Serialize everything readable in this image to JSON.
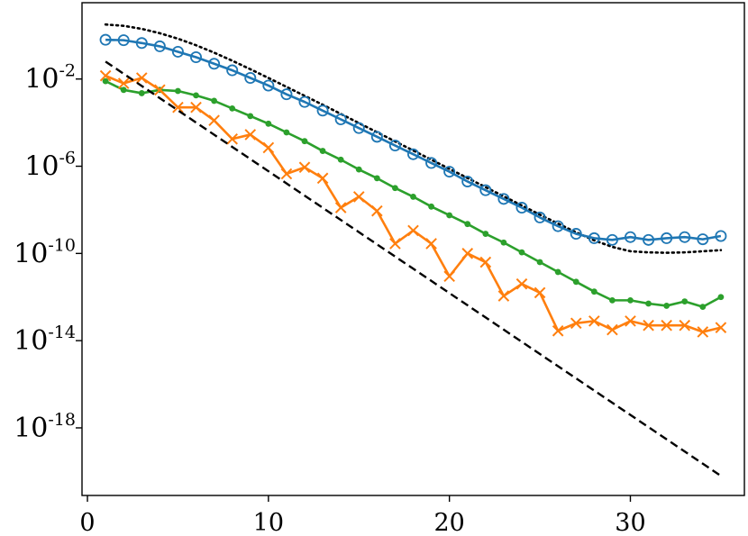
{
  "chart_data": {
    "type": "line",
    "title": "",
    "xlabel": "",
    "ylabel": "",
    "xlim": [
      -0.3,
      36.3
    ],
    "ylim_log10": [
      -21.1,
      1.5
    ],
    "yscale": "log",
    "grid": false,
    "legend": "none",
    "xticks": [
      0,
      10,
      20,
      30
    ],
    "xtick_labels": [
      "0",
      "10",
      "20",
      "30"
    ],
    "yticks_log10": [
      -2,
      -6,
      -10,
      -14,
      -18
    ],
    "ytick_base": "10",
    "ytick_exponents": [
      "-2",
      "-6",
      "-10",
      "-14",
      "-18"
    ],
    "series": [
      {
        "color": "#000000",
        "style": "dotted",
        "marker": "none",
        "x": [
          1,
          2,
          3,
          4,
          5,
          6,
          7,
          8,
          9,
          10,
          11,
          12,
          13,
          14,
          15,
          16,
          17,
          18,
          19,
          20,
          21,
          22,
          23,
          24,
          25,
          26,
          27,
          28,
          29,
          30,
          31,
          32,
          33,
          34,
          35
        ],
        "log10_y": [
          0.5,
          0.44,
          0.3,
          0.1,
          -0.15,
          -0.45,
          -0.79,
          -1.16,
          -1.55,
          -1.95,
          -2.36,
          -2.77,
          -3.18,
          -3.6,
          -4.02,
          -4.44,
          -4.86,
          -5.28,
          -5.7,
          -6.12,
          -6.54,
          -6.96,
          -7.38,
          -7.8,
          -8.22,
          -8.63,
          -9.03,
          -9.4,
          -9.7,
          -9.9,
          -9.95,
          -9.97,
          -9.95,
          -9.9,
          -9.85
        ]
      },
      {
        "color": "#1f77b4",
        "style": "solid",
        "marker": "open-circle",
        "x": [
          1,
          2,
          3,
          4,
          5,
          6,
          7,
          8,
          9,
          10,
          11,
          12,
          13,
          14,
          15,
          16,
          17,
          18,
          19,
          20,
          21,
          22,
          23,
          24,
          25,
          26,
          27,
          28,
          29,
          30,
          31,
          32,
          33,
          34,
          35
        ],
        "log10_y": [
          -0.2,
          -0.22,
          -0.35,
          -0.5,
          -0.75,
          -1.0,
          -1.3,
          -1.6,
          -1.95,
          -2.3,
          -2.7,
          -3.05,
          -3.45,
          -3.85,
          -4.25,
          -4.65,
          -5.05,
          -5.45,
          -5.85,
          -6.25,
          -6.7,
          -7.1,
          -7.5,
          -7.9,
          -8.35,
          -8.75,
          -9.1,
          -9.3,
          -9.38,
          -9.25,
          -9.38,
          -9.3,
          -9.25,
          -9.35,
          -9.2
        ]
      },
      {
        "color": "#2ca02c",
        "style": "solid",
        "marker": "dot",
        "x": [
          1,
          2,
          3,
          4,
          5,
          6,
          7,
          8,
          9,
          10,
          11,
          12,
          13,
          14,
          15,
          16,
          17,
          18,
          19,
          20,
          21,
          22,
          23,
          24,
          25,
          26,
          27,
          28,
          29,
          30,
          31,
          32,
          33,
          34,
          35
        ],
        "log10_y": [
          -2.1,
          -2.5,
          -2.65,
          -2.5,
          -2.55,
          -2.75,
          -3.0,
          -3.35,
          -3.7,
          -4.05,
          -4.45,
          -4.85,
          -5.3,
          -5.7,
          -6.15,
          -6.55,
          -7.0,
          -7.4,
          -7.85,
          -8.25,
          -8.65,
          -9.1,
          -9.5,
          -9.95,
          -10.4,
          -10.85,
          -11.3,
          -11.75,
          -12.15,
          -12.15,
          -12.3,
          -12.4,
          -12.2,
          -12.45,
          -12.0
        ]
      },
      {
        "color": "#ff7f0e",
        "style": "solid",
        "marker": "x",
        "x": [
          1,
          2,
          3,
          4,
          5,
          6,
          7,
          8,
          9,
          10,
          11,
          12,
          13,
          14,
          15,
          16,
          17,
          18,
          19,
          20,
          21,
          22,
          23,
          24,
          25,
          26,
          27,
          28,
          29,
          30,
          31,
          32,
          33,
          34,
          35
        ],
        "log10_y": [
          -1.85,
          -2.2,
          -1.95,
          -2.5,
          -3.3,
          -3.3,
          -3.9,
          -4.75,
          -4.55,
          -5.15,
          -6.35,
          -6.05,
          -6.55,
          -7.9,
          -7.4,
          -8.05,
          -9.55,
          -8.95,
          -9.55,
          -11.05,
          -10.0,
          -10.4,
          -11.95,
          -11.4,
          -11.8,
          -13.55,
          -13.2,
          -13.1,
          -13.5,
          -13.1,
          -13.3,
          -13.3,
          -13.3,
          -13.6,
          -13.4
        ]
      },
      {
        "color": "#000000",
        "style": "dashed",
        "marker": "none",
        "x": [
          1,
          35
        ],
        "log10_y": [
          -1.2,
          -20.2
        ]
      }
    ]
  }
}
